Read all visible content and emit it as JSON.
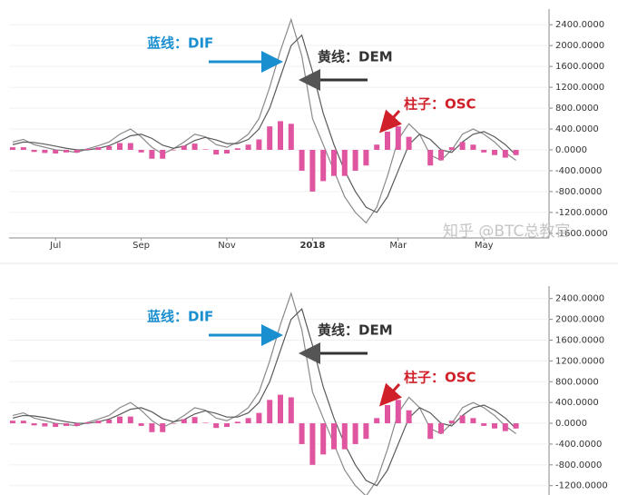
{
  "chart_data": [
    {
      "type": "macd",
      "categories": [
        null,
        null,
        null,
        null,
        "Jul",
        null,
        null,
        null,
        null,
        null,
        null,
        null,
        "Sep",
        null,
        null,
        null,
        null,
        null,
        null,
        null,
        "Nov",
        null,
        null,
        null,
        null,
        null,
        null,
        null,
        "2018",
        null,
        null,
        null,
        null,
        null,
        null,
        null,
        "Mar",
        null,
        null,
        null,
        null,
        null,
        null,
        null,
        "May",
        null,
        null,
        null
      ],
      "series": [
        {
          "color": "#8a8a8a",
          "values": [
            150,
            200,
            100,
            50,
            0,
            -20,
            -50,
            20,
            80,
            150,
            300,
            400,
            250,
            50,
            -80,
            20,
            150,
            300,
            250,
            100,
            50,
            150,
            300,
            600,
            1200,
            1900,
            2500,
            1800,
            600,
            100,
            -400,
            -900,
            -1200,
            -1400,
            -1100,
            -500,
            200,
            500,
            300,
            -100,
            -200,
            0,
            300,
            400,
            300,
            150,
            -50,
            -200
          ]
        },
        {
          "color": "#5a5a5a",
          "values": [
            100,
            150,
            140,
            110,
            70,
            30,
            0,
            0,
            30,
            80,
            170,
            270,
            300,
            220,
            90,
            30,
            70,
            180,
            240,
            190,
            120,
            120,
            200,
            400,
            800,
            1400,
            2000,
            2200,
            1500,
            700,
            100,
            -400,
            -800,
            -1100,
            -1200,
            -900,
            -400,
            100,
            300,
            200,
            0,
            -50,
            150,
            300,
            350,
            250,
            100,
            -100
          ]
        },
        {
          "type": "bar",
          "color": "#e0559f",
          "values": [
            50,
            50,
            -40,
            -60,
            -70,
            -50,
            -50,
            20,
            50,
            70,
            130,
            130,
            -50,
            -170,
            -170,
            -10,
            80,
            120,
            10,
            -90,
            -70,
            30,
            100,
            200,
            450,
            550,
            500,
            -400,
            -800,
            -600,
            -500,
            -500,
            -400,
            -300,
            100,
            350,
            450,
            250,
            0,
            -300,
            -200,
            50,
            150,
            100,
            -50,
            -100,
            -150,
            -100
          ]
        }
      ],
      "ylim": [
        -1690,
        2700
      ],
      "yticks": [
        {
          "value": 2400,
          "label": "2400.0000"
        },
        {
          "value": 2000,
          "label": "2000.0000"
        },
        {
          "value": 1600,
          "label": "1600.0000"
        },
        {
          "value": 1200,
          "label": "1200.0000"
        },
        {
          "value": 800,
          "label": "800.0000"
        },
        {
          "value": 400,
          "label": "400.0000"
        },
        {
          "value": 0,
          "label": "0.0000"
        },
        {
          "value": -400,
          "label": "-400.0000"
        },
        {
          "value": -800,
          "label": "-800.0000"
        },
        {
          "value": -1200,
          "label": "-1200.0000"
        },
        {
          "value": -1600,
          "label": "-1600.0000"
        }
      ],
      "grid": true,
      "annotations": [
        "蓝线：DIF",
        "黄线：DEM",
        "柱子：OSC"
      ],
      "watermark": "知乎 @BTC总教官"
    },
    {
      "type": "macd",
      "series": [
        {
          "color": "#8a8a8a",
          "values": [
            150,
            200,
            100,
            50,
            0,
            -20,
            -50,
            20,
            80,
            150,
            300,
            400,
            250,
            50,
            -80,
            20,
            150,
            300,
            250,
            100,
            50,
            150,
            300,
            600,
            1200,
            1900,
            2500,
            1800,
            600,
            100,
            -400,
            -900,
            -1200,
            -1400,
            -1100,
            -500,
            200,
            500,
            300,
            -100,
            -200,
            0,
            300,
            400,
            300,
            150,
            -50,
            -200
          ]
        },
        {
          "color": "#5a5a5a",
          "values": [
            100,
            150,
            140,
            110,
            70,
            30,
            0,
            0,
            30,
            80,
            170,
            270,
            300,
            220,
            90,
            30,
            70,
            180,
            240,
            190,
            120,
            120,
            200,
            400,
            800,
            1400,
            2000,
            2200,
            1500,
            700,
            100,
            -400,
            -800,
            -1100,
            -1200,
            -900,
            -400,
            100,
            300,
            200,
            0,
            -50,
            150,
            300,
            350,
            250,
            100,
            -100
          ]
        },
        {
          "type": "bar",
          "color": "#e0559f",
          "values": [
            50,
            50,
            -40,
            -60,
            -70,
            -50,
            -50,
            20,
            50,
            70,
            130,
            130,
            -50,
            -170,
            -170,
            -10,
            80,
            120,
            10,
            -90,
            -70,
            30,
            100,
            200,
            450,
            550,
            500,
            -400,
            -800,
            -600,
            -500,
            -500,
            -400,
            -300,
            100,
            350,
            450,
            250,
            0,
            -300,
            -200,
            50,
            150,
            100,
            -50,
            -100,
            -150,
            -100
          ]
        }
      ],
      "ylim": [
        -1380,
        2640
      ],
      "yticks": [
        {
          "value": 2400,
          "label": "2400.0000"
        },
        {
          "value": 2000,
          "label": "2000.0000"
        },
        {
          "value": 1600,
          "label": "1600.0000"
        },
        {
          "value": 1200,
          "label": "1200.0000"
        },
        {
          "value": 800,
          "label": "800.0000"
        },
        {
          "value": 400,
          "label": "400.0000"
        },
        {
          "value": 0,
          "label": "0.0000"
        },
        {
          "value": -400,
          "label": "-400.0000"
        },
        {
          "value": -800,
          "label": "-800.0000"
        },
        {
          "value": -1200,
          "label": "-1200.0000"
        }
      ],
      "grid": true,
      "annotations": [
        "蓝线：DIF",
        "黄线：DEM",
        "柱子：OSC"
      ]
    }
  ]
}
